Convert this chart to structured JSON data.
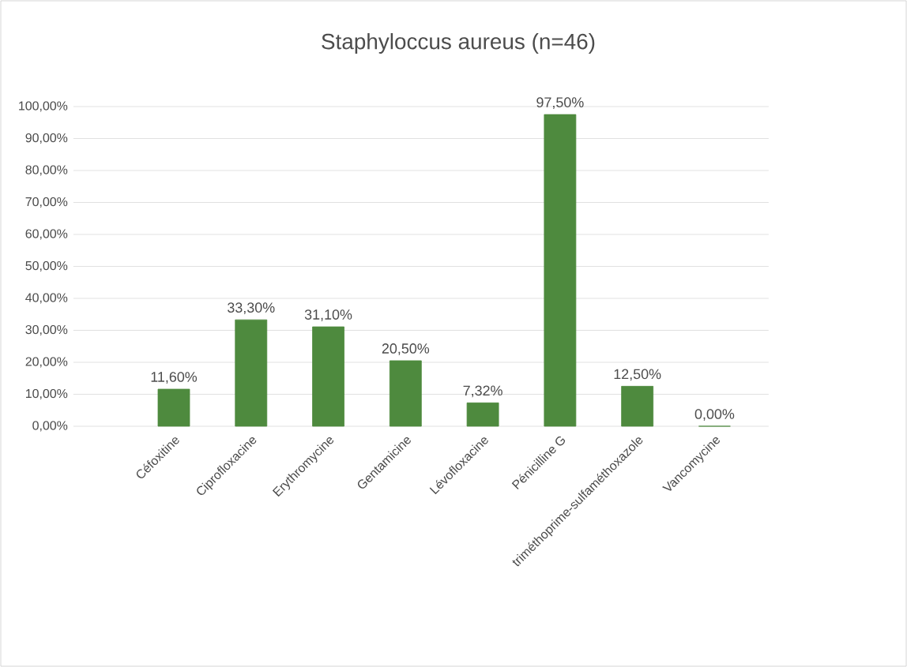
{
  "chart_data": {
    "type": "bar",
    "title": "Staphyloccus aureus (n=46)",
    "categories": [
      "Céfoxitine",
      "Ciprofloxacine",
      "Erythromycine",
      "Gentamicine",
      "Lévofloxacine",
      "Pénicilline G",
      "triméthoprime-sulfaméthoxazole",
      "Vancomycine"
    ],
    "values": [
      11.6,
      33.3,
      31.1,
      20.5,
      7.32,
      97.5,
      12.5,
      0
    ],
    "value_labels": [
      "11,60%",
      "33,30%",
      "31,10%",
      "20,50%",
      "7,32%",
      "97,50%",
      "12,50%",
      "0,00%"
    ],
    "color": "#4e8a3e",
    "ylim": [
      0,
      100
    ],
    "yticks": [
      {
        "value": 0,
        "label": "0,00%"
      },
      {
        "value": 10,
        "label": "10,00%"
      },
      {
        "value": 20,
        "label": "20,00%"
      },
      {
        "value": 30,
        "label": "30,00%"
      },
      {
        "value": 40,
        "label": "40,00%"
      },
      {
        "value": 50,
        "label": "50,00%"
      },
      {
        "value": 60,
        "label": "60,00%"
      },
      {
        "value": 70,
        "label": "70,00%"
      },
      {
        "value": 80,
        "label": "80,00%"
      },
      {
        "value": 90,
        "label": "90,00%"
      },
      {
        "value": 100,
        "label": "100,00%"
      }
    ],
    "grid": "y"
  }
}
